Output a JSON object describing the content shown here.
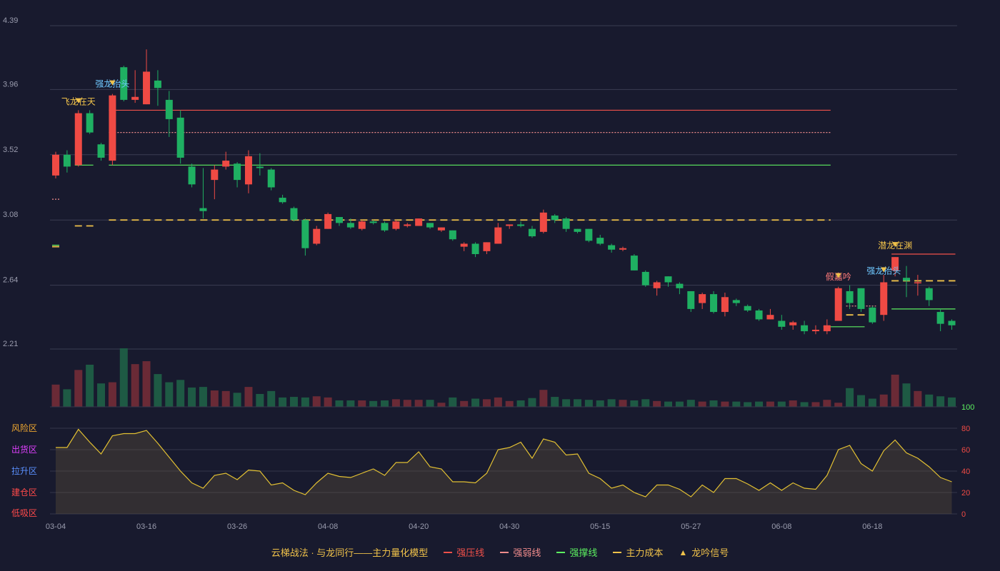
{
  "chart_data": [
    {
      "type": "candlestick",
      "title": "",
      "y_ticks": [
        "4.39",
        "3.96",
        "3.52",
        "3.08",
        "2.64",
        "2.21"
      ],
      "ylim": [
        2.21,
        4.39
      ],
      "x_ticks": [
        {
          "label": "03-04",
          "index": 0
        },
        {
          "label": "03-16",
          "index": 8
        },
        {
          "label": "03-26",
          "index": 16
        },
        {
          "label": "04-08",
          "index": 24
        },
        {
          "label": "04-20",
          "index": 32
        },
        {
          "label": "04-30",
          "index": 40
        },
        {
          "label": "05-15",
          "index": 48
        },
        {
          "label": "05-27",
          "index": 56
        },
        {
          "label": "06-08",
          "index": 64
        },
        {
          "label": "06-18",
          "index": 72
        }
      ],
      "candles": [
        [
          3.38,
          3.52,
          3.54,
          3.36
        ],
        [
          3.52,
          3.44,
          3.55,
          3.4
        ],
        [
          3.45,
          3.8,
          3.82,
          3.44
        ],
        [
          3.8,
          3.67,
          3.82,
          3.66
        ],
        [
          3.59,
          3.5,
          3.6,
          3.48
        ],
        [
          3.48,
          3.92,
          3.93,
          3.45
        ],
        [
          4.11,
          3.89,
          4.12,
          3.88
        ],
        [
          3.89,
          3.91,
          4.09,
          3.87
        ],
        [
          3.86,
          4.08,
          4.23,
          3.86
        ],
        [
          4.02,
          3.97,
          4.09,
          3.85
        ],
        [
          3.89,
          3.76,
          3.95,
          3.64
        ],
        [
          3.77,
          3.5,
          3.82,
          3.46
        ],
        [
          3.44,
          3.32,
          3.46,
          3.3
        ],
        [
          3.16,
          3.14,
          3.43,
          3.09
        ],
        [
          3.35,
          3.42,
          3.45,
          3.22
        ],
        [
          3.44,
          3.48,
          3.54,
          3.42
        ],
        [
          3.46,
          3.35,
          3.47,
          3.3
        ],
        [
          3.32,
          3.51,
          3.55,
          3.26
        ],
        [
          3.44,
          3.43,
          3.53,
          3.38
        ],
        [
          3.42,
          3.3,
          3.43,
          3.28
        ],
        [
          3.23,
          3.2,
          3.25,
          3.19
        ],
        [
          3.16,
          3.08,
          3.17,
          3.07
        ],
        [
          3.08,
          2.89,
          3.09,
          2.84
        ],
        [
          2.92,
          3.02,
          3.04,
          2.91
        ],
        [
          3.02,
          3.12,
          3.13,
          3.02
        ],
        [
          3.1,
          3.06,
          3.1,
          3.04
        ],
        [
          3.06,
          3.03,
          3.09,
          3.02
        ],
        [
          3.02,
          3.07,
          3.08,
          3.01
        ],
        [
          3.07,
          3.06,
          3.08,
          3.05
        ],
        [
          3.06,
          3.01,
          3.07,
          3.0
        ],
        [
          3.02,
          3.07,
          3.08,
          3.01
        ],
        [
          3.04,
          3.05,
          3.06,
          3.03
        ],
        [
          3.04,
          3.09,
          3.09,
          3.04
        ],
        [
          3.06,
          3.03,
          3.06,
          3.02
        ],
        [
          3.01,
          3.03,
          3.03,
          3.0
        ],
        [
          3.01,
          2.95,
          3.01,
          2.94
        ],
        [
          2.9,
          2.92,
          2.93,
          2.87
        ],
        [
          2.92,
          2.85,
          2.93,
          2.83
        ],
        [
          2.87,
          2.93,
          2.93,
          2.85
        ],
        [
          2.92,
          3.03,
          3.06,
          2.92
        ],
        [
          3.04,
          3.05,
          3.05,
          3.02
        ],
        [
          3.05,
          3.04,
          3.07,
          3.03
        ],
        [
          3.02,
          2.97,
          3.04,
          2.96
        ],
        [
          3.0,
          3.13,
          3.15,
          2.99
        ],
        [
          3.11,
          3.08,
          3.12,
          3.06
        ],
        [
          3.09,
          3.02,
          3.1,
          3.0
        ],
        [
          3.02,
          3.0,
          3.02,
          2.99
        ],
        [
          3.02,
          2.94,
          3.02,
          2.93
        ],
        [
          2.96,
          2.92,
          2.98,
          2.91
        ],
        [
          2.91,
          2.88,
          2.92,
          2.86
        ],
        [
          2.88,
          2.89,
          2.9,
          2.87
        ],
        [
          2.84,
          2.74,
          2.85,
          2.74
        ],
        [
          2.73,
          2.64,
          2.74,
          2.63
        ],
        [
          2.62,
          2.66,
          2.67,
          2.57
        ],
        [
          2.7,
          2.66,
          2.7,
          2.63
        ],
        [
          2.65,
          2.62,
          2.66,
          2.58
        ],
        [
          2.6,
          2.48,
          2.6,
          2.46
        ],
        [
          2.52,
          2.58,
          2.59,
          2.48
        ],
        [
          2.58,
          2.46,
          2.6,
          2.45
        ],
        [
          2.46,
          2.56,
          2.59,
          2.43
        ],
        [
          2.54,
          2.52,
          2.55,
          2.5
        ],
        [
          2.5,
          2.47,
          2.51,
          2.46
        ],
        [
          2.47,
          2.41,
          2.48,
          2.4
        ],
        [
          2.41,
          2.44,
          2.48,
          2.41
        ],
        [
          2.4,
          2.36,
          2.44,
          2.34
        ],
        [
          2.37,
          2.39,
          2.4,
          2.34
        ],
        [
          2.37,
          2.33,
          2.4,
          2.31
        ],
        [
          2.33,
          2.34,
          2.37,
          2.31
        ],
        [
          2.33,
          2.37,
          2.41,
          2.31
        ],
        [
          2.4,
          2.62,
          2.63,
          2.4
        ],
        [
          2.6,
          2.52,
          2.64,
          2.48
        ],
        [
          2.62,
          2.48,
          2.62,
          2.46
        ],
        [
          2.49,
          2.39,
          2.5,
          2.38
        ],
        [
          2.44,
          2.66,
          2.71,
          2.4
        ],
        [
          2.74,
          2.83,
          2.83,
          2.7
        ],
        [
          2.69,
          2.67,
          2.77,
          2.56
        ],
        [
          2.66,
          2.66,
          2.71,
          2.57
        ],
        [
          2.62,
          2.54,
          2.63,
          2.5
        ],
        [
          2.46,
          2.38,
          2.48,
          2.33
        ],
        [
          2.4,
          2.37,
          2.41,
          2.34
        ]
      ],
      "annotations": [
        {
          "text": "飞龙在天",
          "index": 2,
          "price": 3.8,
          "color": "#f0c24a"
        },
        {
          "text": "强龙抬头",
          "index": 5,
          "price": 3.92,
          "color": "#6fc8ff"
        },
        {
          "text": "假嘉吟",
          "index": 69,
          "price": 2.62,
          "color": "#ff7a7a"
        },
        {
          "text": "强龙抬头",
          "index": 73,
          "price": 2.66,
          "color": "#6fc8ff"
        },
        {
          "text": "潜龙在渊",
          "index": 74,
          "price": 2.83,
          "color": "#f0c24a"
        }
      ],
      "lines": [
        {
          "kind": "strong-pressure",
          "from": 5,
          "to": 68,
          "value": 3.82,
          "color": "#f0504a",
          "style": "solid"
        },
        {
          "kind": "strong-weak",
          "from": 5,
          "to": 68,
          "value": 3.67,
          "color": "#f08c8c",
          "style": "dotted"
        },
        {
          "kind": "strong-support",
          "from": 5,
          "to": 68,
          "value": 3.45,
          "color": "#5cf060",
          "style": "solid"
        },
        {
          "kind": "main-cost",
          "from": 5,
          "to": 68,
          "value": 3.08,
          "color": "#f0c24a",
          "style": "dashed"
        },
        {
          "kind": "strong-pressure",
          "from": 74,
          "to": 79,
          "value": 2.85,
          "color": "#f0504a",
          "style": "solid"
        },
        {
          "kind": "main-cost",
          "from": 74,
          "to": 79,
          "value": 2.67,
          "color": "#f0c24a",
          "style": "dashed"
        },
        {
          "kind": "strong-support",
          "from": 74,
          "to": 79,
          "value": 2.48,
          "color": "#5cf060",
          "style": "solid"
        },
        {
          "kind": "strong-support",
          "from": 68,
          "to": 71,
          "value": 2.36,
          "color": "#5cf060",
          "style": "solid"
        },
        {
          "kind": "main-cost",
          "from": 70,
          "to": 71,
          "value": 2.44,
          "color": "#f0c24a",
          "style": "dashed"
        },
        {
          "kind": "strong-weak",
          "from": 70,
          "to": 72,
          "value": 2.5,
          "color": "#f08c8c",
          "style": "dotted"
        },
        {
          "kind": "strong-weak",
          "from": 0,
          "to": 0,
          "value": 3.22,
          "color": "#f08c8c",
          "style": "dotted"
        },
        {
          "kind": "main-cost",
          "from": 2,
          "to": 3,
          "value": 3.04,
          "color": "#f0c24a",
          "style": "dashed"
        },
        {
          "kind": "strong-support",
          "from": 0,
          "to": 0,
          "value": 2.91,
          "color": "#5cf060",
          "style": "solid"
        },
        {
          "kind": "main-cost",
          "from": 0,
          "to": 0,
          "value": 2.9,
          "color": "#f0c24a",
          "style": "dashed"
        },
        {
          "kind": "strong-support",
          "from": 2,
          "to": 3,
          "value": 3.45,
          "color": "#5cf060",
          "style": "solid"
        }
      ],
      "volumes": [
        38,
        30,
        63,
        72,
        40,
        42,
        100,
        73,
        78,
        56,
        42,
        46,
        33,
        34,
        28,
        27,
        24,
        34,
        22,
        27,
        16,
        17,
        16,
        18,
        16,
        11,
        11,
        11,
        10,
        11,
        13,
        12,
        12,
        12,
        7,
        16,
        10,
        14,
        13,
        16,
        10,
        11,
        15,
        29,
        17,
        13,
        13,
        12,
        11,
        13,
        12,
        11,
        13,
        10,
        9,
        9,
        12,
        9,
        11,
        9,
        9,
        8,
        9,
        9,
        9,
        11,
        8,
        8,
        12,
        7,
        32,
        20,
        14,
        21,
        55,
        40,
        27,
        21,
        18,
        16
      ]
    },
    {
      "type": "area",
      "title": "",
      "ylim": [
        0,
        100
      ],
      "y_ticks_right": [
        "100",
        "80",
        "60",
        "40",
        "20",
        "0"
      ],
      "zone_labels": [
        {
          "text": "风险区",
          "color": "#f0a830"
        },
        {
          "text": "出货区",
          "color": "#e040ff"
        },
        {
          "text": "拉升区",
          "color": "#5a90ff"
        },
        {
          "text": "建仓区",
          "color": "#ff4a4a"
        },
        {
          "text": "低吸区",
          "color": "#ff4a4a"
        }
      ],
      "values": [
        62,
        62,
        79,
        67,
        56,
        73,
        75,
        75,
        78,
        66,
        53,
        40,
        29,
        24,
        36,
        38,
        32,
        41,
        40,
        27,
        29,
        22,
        18,
        29,
        38,
        35,
        34,
        38,
        42,
        36,
        48,
        48,
        58,
        44,
        42,
        30,
        30,
        29,
        38,
        60,
        62,
        67,
        52,
        70,
        67,
        55,
        56,
        38,
        33,
        24,
        27,
        20,
        16,
        27,
        27,
        23,
        16,
        27,
        20,
        33,
        33,
        28,
        22,
        29,
        22,
        29,
        24,
        23,
        36,
        60,
        64,
        47,
        40,
        59,
        69,
        57,
        52,
        44,
        34,
        30
      ]
    }
  ],
  "legend": {
    "title": "云梯战法 · 与龙同行——主力量化模型",
    "items": [
      {
        "label": "强压线",
        "swatch": "sw-solid-red",
        "color": "#f0504a"
      },
      {
        "label": "强弱线",
        "swatch": "sw-dash-pink",
        "color": "#f08c8c"
      },
      {
        "label": "强撑线",
        "swatch": "sw-solid-green",
        "color": "#5cf060"
      },
      {
        "label": "主力成本",
        "swatch": "sw-dash-yellow",
        "color": "#f0c24a"
      },
      {
        "label": "龙吟信号",
        "swatch": "tri",
        "color": "#f0c24a"
      }
    ]
  },
  "colors": {
    "up": "#ef4a44",
    "down": "#1fb062",
    "grid": "#3a3d52",
    "axis": "#9a9cae",
    "osc_line": "#e2c032"
  }
}
